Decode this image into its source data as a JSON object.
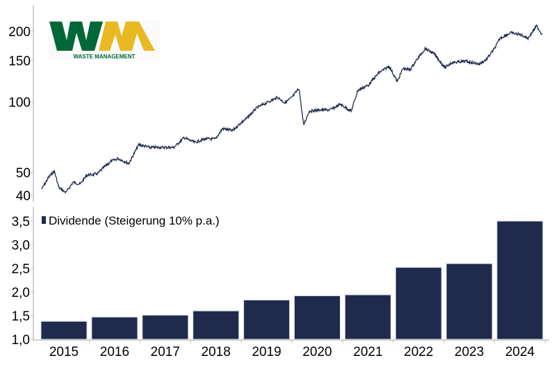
{
  "logo": {
    "text": "WM",
    "subtitle": "WASTE MANAGEMENT",
    "colors": {
      "green": "#006838",
      "yellow": "#e8b923"
    }
  },
  "chart_data": [
    {
      "type": "line",
      "title": "",
      "yscale": "log",
      "ylim": [
        38,
        240
      ],
      "xlim": [
        2014.4,
        2024.55
      ],
      "yticks": [
        40,
        50,
        100,
        150,
        200
      ],
      "ytick_labels": [
        "40",
        "50",
        "100",
        "150",
        "200"
      ],
      "color": "#1f2a4d",
      "x": [
        2014.56,
        2014.7,
        2014.81,
        2014.9,
        2015.04,
        2015.18,
        2015.32,
        2015.45,
        2015.66,
        2015.8,
        2015.93,
        2016.07,
        2016.28,
        2016.48,
        2016.69,
        2016.89,
        2017.17,
        2017.37,
        2017.58,
        2017.78,
        2017.99,
        2018.13,
        2018.33,
        2018.47,
        2018.61,
        2018.81,
        2019.02,
        2019.22,
        2019.36,
        2019.5,
        2019.64,
        2019.73,
        2019.84,
        2020.05,
        2020.25,
        2020.46,
        2020.67,
        2020.8,
        2021.01,
        2021.21,
        2021.42,
        2021.58,
        2021.69,
        2021.83,
        2021.97,
        2022.13,
        2022.31,
        2022.52,
        2022.65,
        2022.93,
        2023.2,
        2023.34,
        2023.5,
        2023.61,
        2023.82,
        2024.03,
        2024.16,
        2024.33,
        2024.44
      ],
      "y": [
        42.5,
        47.8,
        50.8,
        43.1,
        41.1,
        45.5,
        44.6,
        48.7,
        49.4,
        52.9,
        55.8,
        57.4,
        54.7,
        65.8,
        64.0,
        64.0,
        64.0,
        70.4,
        67.2,
        69.5,
        69.5,
        77.0,
        75.4,
        80.7,
        85.2,
        94.5,
        99.7,
        104.6,
        99.0,
        104.6,
        114.3,
        79.6,
        91.3,
        92.5,
        92.5,
        97.7,
        91.3,
        112,
        118,
        132.8,
        142,
        122,
        139,
        137,
        152,
        169,
        160,
        140,
        147,
        149,
        145,
        152,
        169,
        187,
        197,
        193,
        187,
        211,
        193
      ]
    },
    {
      "type": "bar",
      "title": "",
      "legend": "Dividende (Steigerung 10% p.a.)",
      "legend_position": "top-left",
      "categories": [
        "2015",
        "2016",
        "2017",
        "2018",
        "2019",
        "2020",
        "2021",
        "2022",
        "2023",
        "2024"
      ],
      "values": [
        1.38,
        1.47,
        1.51,
        1.6,
        1.83,
        1.92,
        1.94,
        2.52,
        2.6,
        3.5
      ],
      "ylim": [
        1.0,
        3.75
      ],
      "yticks": [
        1.0,
        1.5,
        2.0,
        2.5,
        3.0,
        3.5
      ],
      "ytick_labels": [
        "1,0",
        "1,5",
        "2,0",
        "2,5",
        "3,0",
        "3,5"
      ],
      "color": "#1f2a4d"
    }
  ]
}
